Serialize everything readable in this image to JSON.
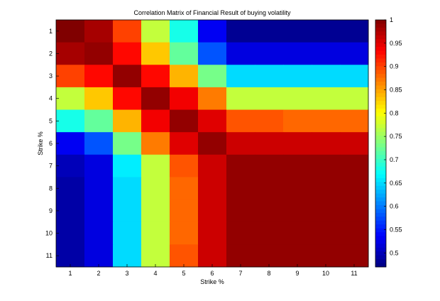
{
  "chart_data": {
    "type": "heatmap",
    "title": "Correlation Matrix of Financial Result of buying volatility",
    "xlabel": "Strike %",
    "ylabel": "Strike %",
    "x_categories": [
      "1",
      "2",
      "3",
      "4",
      "5",
      "6",
      "7",
      "8",
      "9",
      "10",
      "11"
    ],
    "y_categories": [
      "1",
      "2",
      "3",
      "4",
      "5",
      "6",
      "7",
      "8",
      "9",
      "10",
      "11"
    ],
    "colormap": "jet",
    "color_range": [
      0.47,
      1.0
    ],
    "colorbar_ticks": [
      1,
      0.95,
      0.9,
      0.85,
      0.8,
      0.75,
      0.7,
      0.65,
      0.6,
      0.55,
      0.5
    ],
    "values": [
      [
        1.0,
        0.98,
        0.9,
        0.77,
        0.68,
        0.53,
        0.48,
        0.48,
        0.48,
        0.48,
        0.48
      ],
      [
        0.98,
        0.99,
        0.93,
        0.83,
        0.72,
        0.58,
        0.52,
        0.52,
        0.52,
        0.52,
        0.52
      ],
      [
        0.9,
        0.93,
        0.99,
        0.93,
        0.84,
        0.73,
        0.65,
        0.65,
        0.65,
        0.65,
        0.65
      ],
      [
        0.77,
        0.83,
        0.93,
        0.99,
        0.94,
        0.87,
        0.77,
        0.77,
        0.77,
        0.77,
        0.77
      ],
      [
        0.68,
        0.72,
        0.84,
        0.94,
        0.99,
        0.95,
        0.89,
        0.89,
        0.88,
        0.88,
        0.88
      ],
      [
        0.53,
        0.58,
        0.73,
        0.87,
        0.95,
        0.99,
        0.96,
        0.96,
        0.96,
        0.96,
        0.96
      ],
      [
        0.5,
        0.52,
        0.66,
        0.77,
        0.89,
        0.96,
        0.99,
        0.99,
        0.99,
        0.99,
        0.99
      ],
      [
        0.49,
        0.52,
        0.65,
        0.77,
        0.88,
        0.96,
        0.99,
        0.99,
        0.99,
        0.99,
        0.99
      ],
      [
        0.49,
        0.52,
        0.65,
        0.77,
        0.88,
        0.96,
        0.99,
        0.99,
        0.99,
        0.99,
        0.99
      ],
      [
        0.49,
        0.52,
        0.65,
        0.77,
        0.88,
        0.96,
        0.99,
        0.99,
        0.99,
        0.99,
        0.99
      ],
      [
        0.49,
        0.52,
        0.65,
        0.77,
        0.89,
        0.96,
        0.99,
        0.99,
        0.99,
        0.99,
        0.99
      ]
    ]
  }
}
